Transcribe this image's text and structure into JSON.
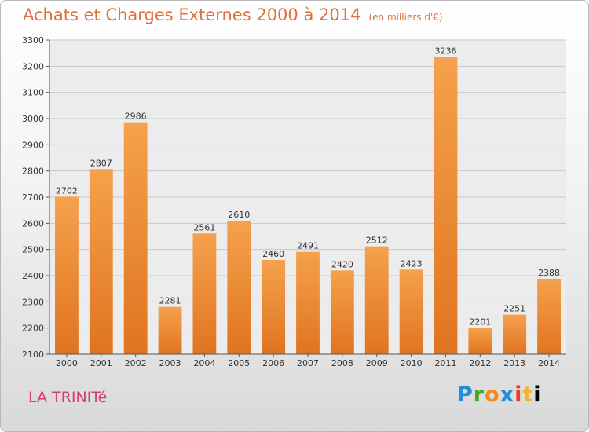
{
  "chart_data": {
    "type": "bar",
    "title": "Achats et Charges Externes 2000 à 2014",
    "unit": "(en milliers d'€)",
    "categories": [
      "2000",
      "2001",
      "2002",
      "2003",
      "2004",
      "2005",
      "2006",
      "2007",
      "2008",
      "2009",
      "2010",
      "2011",
      "2012",
      "2013",
      "2014"
    ],
    "values": [
      2702,
      2807,
      2986,
      2281,
      2561,
      2610,
      2460,
      2491,
      2420,
      2512,
      2423,
      3236,
      2201,
      2251,
      2388
    ],
    "ylim": [
      2100,
      3300
    ],
    "yticks": [
      2100,
      2200,
      2300,
      2400,
      2500,
      2600,
      2700,
      2800,
      2900,
      3000,
      3100,
      3200,
      3300
    ],
    "grid": true,
    "bar_color": "#f5a14d"
  },
  "footer": {
    "place": "LA TRINITé",
    "logo": [
      "P",
      "r",
      "o",
      "x",
      "i",
      "t",
      "i"
    ]
  }
}
